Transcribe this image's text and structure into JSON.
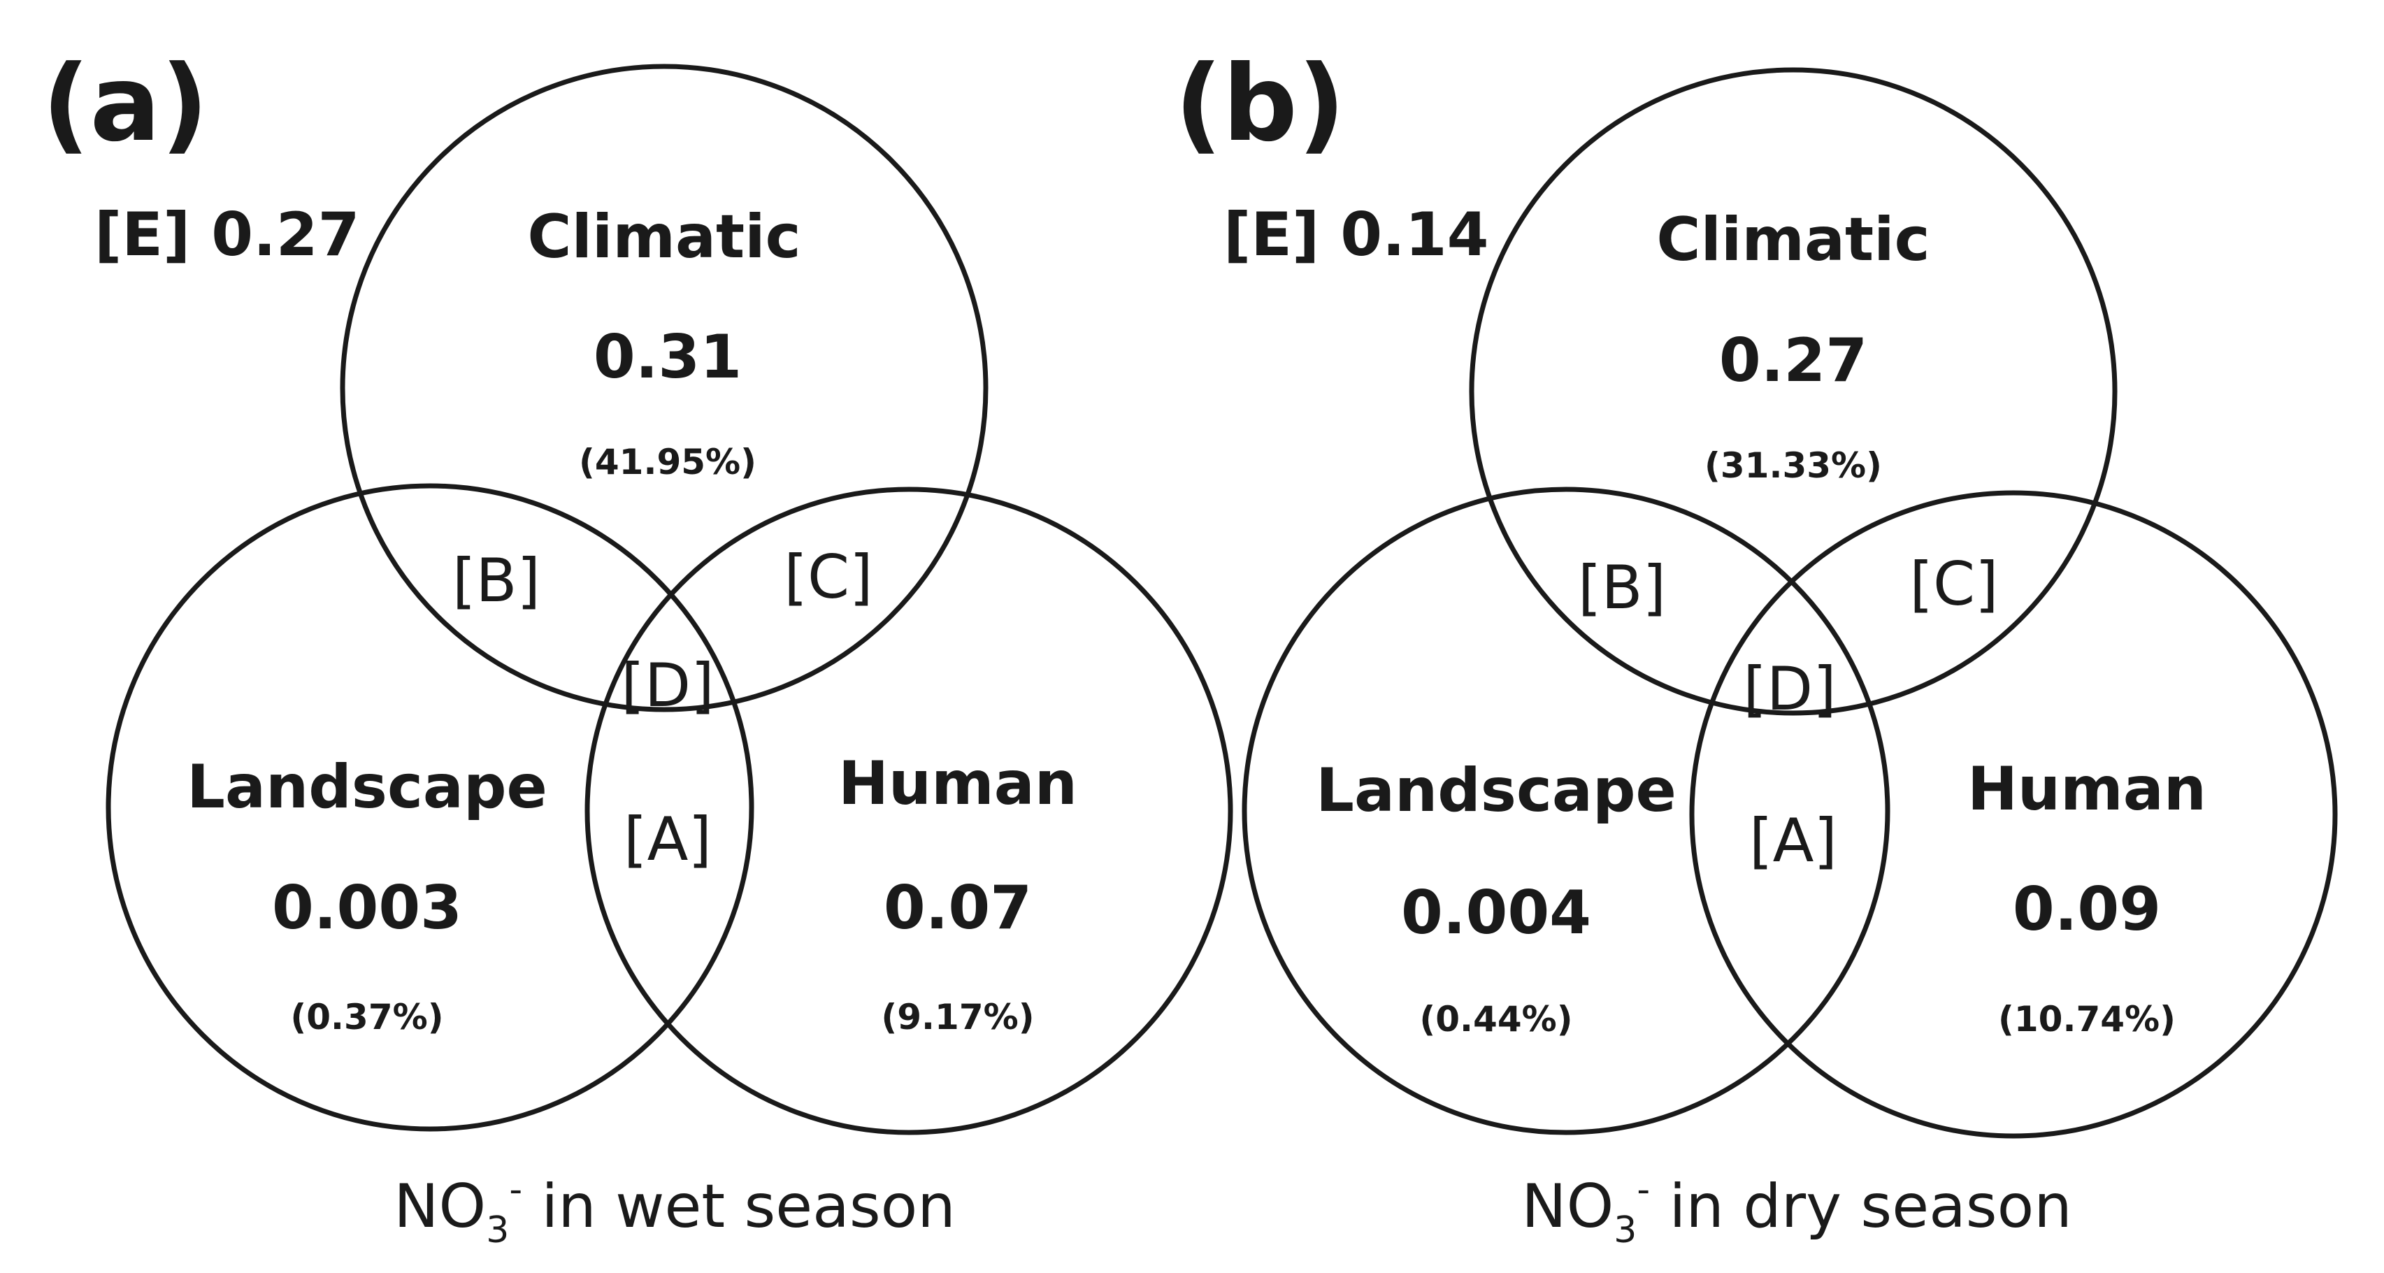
{
  "panels": [
    {
      "label": "(a)",
      "residual": "[E] 0.27",
      "climatic": {
        "name": "Climatic",
        "value": "0.31",
        "percent": "(41.95%)"
      },
      "landscape": {
        "name": "Landscape",
        "value": "0.003",
        "percent": "(0.37%)"
      },
      "human": {
        "name": "Human",
        "value": "0.07",
        "percent": "(9.17%)"
      },
      "regions": {
        "A": "[A]",
        "B": "[B]",
        "C": "[C]",
        "D": "[D]"
      },
      "caption": {
        "ion": "NO",
        "subscript": "3",
        "superscript": "-",
        "rest": " in wet season"
      }
    },
    {
      "label": "(b)",
      "residual": "[E] 0.14",
      "climatic": {
        "name": "Climatic",
        "value": "0.27",
        "percent": "(31.33%)"
      },
      "landscape": {
        "name": "Landscape",
        "value": "0.004",
        "percent": "(0.44%)"
      },
      "human": {
        "name": "Human",
        "value": "0.09",
        "percent": "(10.74%)"
      },
      "regions": {
        "A": "[A]",
        "B": "[B]",
        "C": "[C]",
        "D": "[D]"
      },
      "caption": {
        "ion": "NO",
        "subscript": "3",
        "superscript": "-",
        "rest": " in dry season"
      }
    }
  ]
}
